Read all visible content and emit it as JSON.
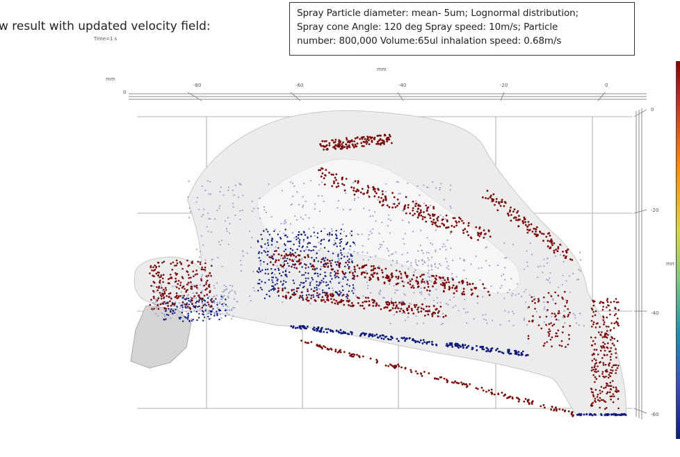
{
  "heading": "w result with updated velocity field:",
  "time_label": "Time=1 s",
  "params_box": {
    "lines": [
      "Spray Particle diameter: mean- 5um; Lognormal distribution;",
      "Spray cone Angle: 120 deg Spray speed: 10m/s; Particle",
      "number: 800,000  Volume:65ul inhalation speed: 0.68m/s"
    ]
  },
  "plot": {
    "top_axis_unit": "mm",
    "top_axis_left_unit": "mm",
    "top_axis_left_zero": "0",
    "top_ticks": [
      "-80",
      "-60",
      "-40",
      "-20",
      "0"
    ],
    "right_axis_unit": "mm",
    "right_ticks": [
      "0",
      "-20",
      "-40",
      "-60"
    ]
  },
  "colors": {
    "red_particles": "#7a0a0a",
    "blue_particles": "#0d1a7a",
    "light_particles": "#9aa0cc",
    "geometry_fill": "#ececec",
    "grid": "#9a9a9a"
  }
}
